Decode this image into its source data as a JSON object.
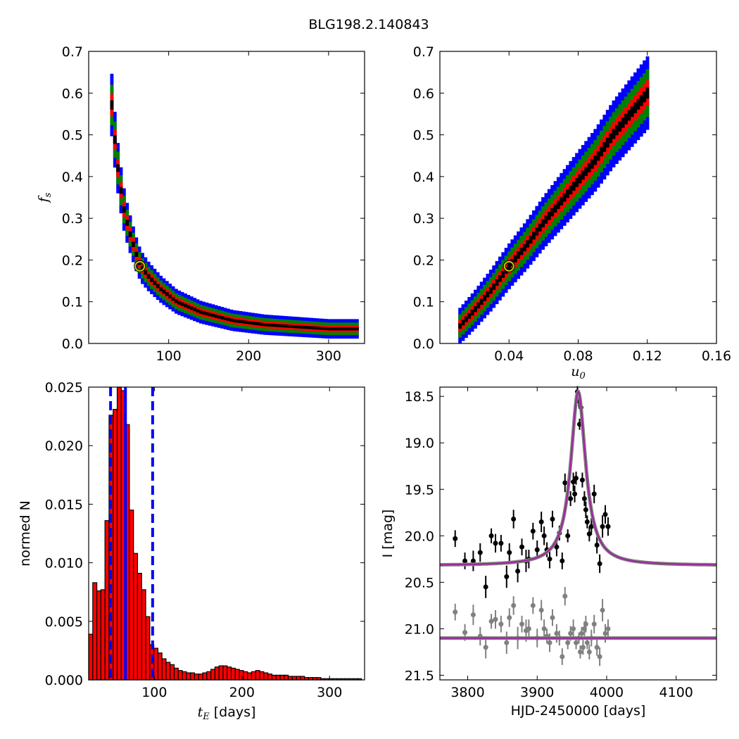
{
  "figure_title": "BLG198.2.140843",
  "colors": {
    "blue": "#0000ff",
    "green": "#008000",
    "red": "#ff0000",
    "black": "#000000",
    "marker": "#c8c800",
    "model": "#a020a0",
    "model_outline": "#808080",
    "grey_points": "#808080"
  },
  "chart_data": [
    {
      "id": "tE_vs_fs",
      "type": "heatmap",
      "xlabel": "",
      "ylabel": "f_s",
      "xlim": [
        0,
        345
      ],
      "ylim": [
        0,
        0.7
      ],
      "xticks": [
        100,
        200,
        300
      ],
      "yticks": [
        0.0,
        0.1,
        0.2,
        0.3,
        0.4,
        0.5,
        0.6,
        0.7
      ],
      "confidence_levels": [
        "blue",
        "green",
        "red",
        "black"
      ],
      "ridge": [
        [
          27,
          0.61
        ],
        [
          32,
          0.5
        ],
        [
          35,
          0.44
        ],
        [
          40,
          0.37
        ],
        [
          45,
          0.31
        ],
        [
          52,
          0.26
        ],
        [
          60,
          0.21
        ],
        [
          65,
          0.185
        ],
        [
          75,
          0.16
        ],
        [
          90,
          0.13
        ],
        [
          110,
          0.1
        ],
        [
          140,
          0.075
        ],
        [
          180,
          0.055
        ],
        [
          220,
          0.045
        ],
        [
          260,
          0.04
        ],
        [
          300,
          0.035
        ],
        [
          338,
          0.035
        ]
      ],
      "best_fit": {
        "x": 64,
        "y": 0.185
      }
    },
    {
      "id": "u0_vs_fs",
      "type": "heatmap",
      "xlabel": "u_0",
      "ylabel": "",
      "xlim": [
        0.0,
        0.16
      ],
      "ylim": [
        0,
        0.7
      ],
      "xticks": [
        0.04,
        0.08,
        0.12,
        0.16
      ],
      "yticks": [
        0.0,
        0.1,
        0.2,
        0.3,
        0.4,
        0.5,
        0.6,
        0.7
      ],
      "confidence_levels": [
        "blue",
        "green",
        "red",
        "black"
      ],
      "ridge": [
        [
          0.01,
          0.035
        ],
        [
          0.02,
          0.08
        ],
        [
          0.03,
          0.13
        ],
        [
          0.04,
          0.185
        ],
        [
          0.05,
          0.235
        ],
        [
          0.06,
          0.29
        ],
        [
          0.07,
          0.34
        ],
        [
          0.08,
          0.39
        ],
        [
          0.09,
          0.44
        ],
        [
          0.1,
          0.5
        ],
        [
          0.11,
          0.55
        ],
        [
          0.12,
          0.6
        ]
      ],
      "best_fit": {
        "x": 0.04,
        "y": 0.185
      }
    },
    {
      "id": "tE_histogram",
      "type": "bar",
      "xlabel": "t_E [days]",
      "ylabel": "normed N",
      "xlim": [
        25,
        340
      ],
      "ylim": [
        0,
        0.025
      ],
      "xticks": [
        100,
        200,
        300
      ],
      "yticks": [
        0.0,
        0.005,
        0.01,
        0.015,
        0.02,
        0.025
      ],
      "ytick_labels": [
        "0.000",
        "0.005",
        "0.010",
        "0.015",
        "0.020",
        "0.025"
      ],
      "bin_width": 4.65,
      "bin_start": 25,
      "values": [
        0.0039,
        0.0083,
        0.0076,
        0.0077,
        0.0136,
        0.0226,
        0.0231,
        0.0265,
        0.0247,
        0.0218,
        0.0145,
        0.0108,
        0.0091,
        0.0077,
        0.0054,
        0.003,
        0.0027,
        0.0023,
        0.0018,
        0.0015,
        0.0013,
        0.001,
        0.0008,
        0.0007,
        0.0006,
        0.0006,
        0.0005,
        0.0005,
        0.0006,
        0.0007,
        0.0009,
        0.0011,
        0.0012,
        0.0012,
        0.0011,
        0.001,
        0.0009,
        0.0008,
        0.0007,
        0.0006,
        0.0007,
        0.0008,
        0.0007,
        0.0006,
        0.0005,
        0.0004,
        0.0004,
        0.0004,
        0.0004,
        0.0003,
        0.0003,
        0.0003,
        0.0003,
        0.0002,
        0.0002,
        0.0002,
        0.0002,
        0.0001,
        0.0001,
        0.0001,
        0.0001,
        0.0001,
        0.0001,
        0.0001,
        0.0001,
        0.0001,
        0.0001
      ],
      "dashed_lines_x": [
        50,
        98
      ],
      "solid_line_x": 67
    },
    {
      "id": "lightcurve",
      "type": "scatter",
      "xlabel": "HJD-2450000 [days]",
      "ylabel": "I [mag]",
      "xlim": [
        3760,
        4158
      ],
      "ylim": [
        21.55,
        18.4
      ],
      "xticks": [
        3800,
        3900,
        4000,
        4100
      ],
      "yticks": [
        18.5,
        19.0,
        19.5,
        20.0,
        20.5,
        21.0,
        21.5
      ],
      "model": {
        "t0": 3959,
        "base": 20.32,
        "peak": 18.45,
        "tau": 13
      },
      "residual_baseline": 21.1,
      "series": [
        {
          "points": [
            [
              3782,
              20.03,
              0.09
            ],
            [
              3796,
              20.27,
              0.09
            ],
            [
              3808,
              20.27,
              0.11
            ],
            [
              3818,
              20.18,
              0.1
            ],
            [
              3826,
              20.55,
              0.12
            ],
            [
              3834,
              20.0,
              0.08
            ],
            [
              3840,
              20.08,
              0.1
            ],
            [
              3848,
              20.08,
              0.09
            ],
            [
              3856,
              20.44,
              0.12
            ],
            [
              3860,
              20.18,
              0.1
            ],
            [
              3866,
              19.82,
              0.1
            ],
            [
              3872,
              20.38,
              0.12
            ],
            [
              3878,
              20.12,
              0.09
            ],
            [
              3884,
              20.27,
              0.12
            ],
            [
              3888,
              20.25,
              0.1
            ],
            [
              3894,
              19.95,
              0.09
            ],
            [
              3900,
              20.15,
              0.1
            ],
            [
              3906,
              19.85,
              0.11
            ],
            [
              3910,
              20.0,
              0.1
            ],
            [
              3914,
              20.15,
              0.08
            ],
            [
              3918,
              20.25,
              0.1
            ],
            [
              3922,
              19.82,
              0.09
            ],
            [
              3928,
              20.12,
              0.1
            ],
            [
              3932,
              19.97,
              0.08
            ],
            [
              3936,
              20.27,
              0.09
            ],
            [
              3940,
              19.43,
              0.1
            ],
            [
              3944,
              20.0,
              0.07
            ],
            [
              3948,
              19.6,
              0.08
            ],
            [
              3952,
              19.42,
              0.1
            ],
            [
              3954,
              19.55,
              0.09
            ],
            [
              3956,
              19.38,
              0.07
            ],
            [
              3958,
              18.45,
              0.06
            ],
            [
              3960,
              18.55,
              0.06
            ],
            [
              3961,
              18.8,
              0.06
            ],
            [
              3963,
              18.62,
              0.07
            ],
            [
              3965,
              19.4,
              0.08
            ],
            [
              3968,
              19.6,
              0.08
            ],
            [
              3970,
              19.72,
              0.09
            ],
            [
              3972,
              19.85,
              0.07
            ],
            [
              3975,
              19.98,
              0.08
            ],
            [
              3978,
              19.9,
              0.09
            ],
            [
              3982,
              19.55,
              0.1
            ],
            [
              3986,
              20.1,
              0.09
            ],
            [
              3990,
              20.3,
              0.1
            ],
            [
              3994,
              19.9,
              0.12
            ],
            [
              3998,
              19.77,
              0.1
            ],
            [
              4002,
              19.9,
              0.1
            ]
          ]
        },
        {
          "points": [
            [
              3782,
              20.82,
              0.09
            ],
            [
              3796,
              21.04,
              0.09
            ],
            [
              3808,
              20.85,
              0.11
            ],
            [
              3818,
              21.08,
              0.1
            ],
            [
              3826,
              21.2,
              0.12
            ],
            [
              3834,
              20.92,
              0.08
            ],
            [
              3840,
              20.9,
              0.1
            ],
            [
              3848,
              20.95,
              0.09
            ],
            [
              3856,
              21.15,
              0.12
            ],
            [
              3860,
              20.88,
              0.1
            ],
            [
              3866,
              20.75,
              0.1
            ],
            [
              3872,
              21.1,
              0.12
            ],
            [
              3878,
              20.95,
              0.09
            ],
            [
              3884,
              21.02,
              0.12
            ],
            [
              3888,
              21.0,
              0.1
            ],
            [
              3894,
              20.75,
              0.09
            ],
            [
              3900,
              21.1,
              0.1
            ],
            [
              3906,
              20.8,
              0.11
            ],
            [
              3910,
              21.0,
              0.1
            ],
            [
              3914,
              21.08,
              0.08
            ],
            [
              3918,
              21.15,
              0.1
            ],
            [
              3922,
              20.88,
              0.09
            ],
            [
              3928,
              21.05,
              0.1
            ],
            [
              3932,
              21.1,
              0.08
            ],
            [
              3936,
              21.3,
              0.09
            ],
            [
              3940,
              20.65,
              0.1
            ],
            [
              3944,
              21.15,
              0.07
            ],
            [
              3948,
              21.05,
              0.08
            ],
            [
              3952,
              21.0,
              0.1
            ],
            [
              3956,
              21.15,
              0.07
            ],
            [
              3960,
              21.1,
              0.06
            ],
            [
              3962,
              21.25,
              0.07
            ],
            [
              3964,
              21.05,
              0.07
            ],
            [
              3966,
              21.2,
              0.08
            ],
            [
              3968,
              21.0,
              0.08
            ],
            [
              3970,
              20.95,
              0.09
            ],
            [
              3972,
              21.15,
              0.07
            ],
            [
              3975,
              21.25,
              0.08
            ],
            [
              3978,
              21.1,
              0.09
            ],
            [
              3982,
              20.95,
              0.1
            ],
            [
              3986,
              21.2,
              0.09
            ],
            [
              3990,
              21.3,
              0.1
            ],
            [
              3994,
              20.8,
              0.12
            ],
            [
              3998,
              21.05,
              0.1
            ],
            [
              4002,
              21.0,
              0.1
            ]
          ]
        }
      ]
    }
  ]
}
